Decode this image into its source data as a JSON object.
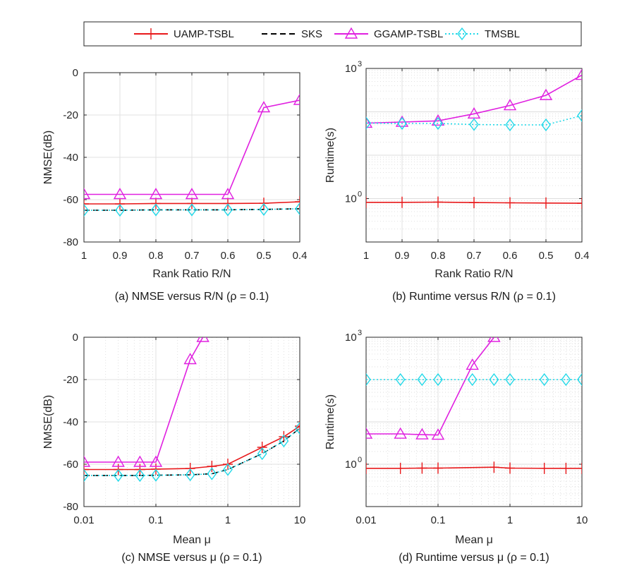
{
  "legend": {
    "entries": [
      {
        "name": "UAMP-TSBL",
        "color": "#e8191b",
        "dash": "solid",
        "marker": "plus"
      },
      {
        "name": "SKS",
        "color": "#000000",
        "dash": "dashed",
        "marker": "none"
      },
      {
        "name": "GGAMP-TSBL",
        "color": "#e020e0",
        "dash": "solid",
        "marker": "triangle"
      },
      {
        "name": "TMSBL",
        "color": "#1fd8e8",
        "dash": "dotted",
        "marker": "diamond"
      }
    ]
  },
  "chart_data": [
    {
      "type": "line",
      "caption": "(a) NMSE versus R/N (ρ = 0.1)",
      "xlabel": "Rank Ratio R/N",
      "ylabel": "NMSE(dB)",
      "xscale": "category",
      "categories": [
        "1",
        "0.9",
        "0.8",
        "0.7",
        "0.6",
        "0.5",
        "0.4"
      ],
      "yscale": "linear",
      "ylim": [
        -80,
        0
      ],
      "yticks": [
        0,
        -20,
        -40,
        -60,
        -80
      ],
      "ytick_labels": [
        "0",
        "-20",
        "-40",
        "-60",
        "-80"
      ],
      "series": [
        {
          "name": "UAMP-TSBL",
          "values": [
            -62,
            -62,
            -61.8,
            -61.8,
            -61.8,
            -61.7,
            -61
          ]
        },
        {
          "name": "SKS",
          "values": [
            -65,
            -65,
            -64.8,
            -64.8,
            -64.8,
            -64.6,
            -64.3
          ]
        },
        {
          "name": "GGAMP-TSBL",
          "values": [
            -57.5,
            -57.5,
            -57.5,
            -57.5,
            -57.5,
            -16.5,
            -13
          ]
        },
        {
          "name": "TMSBL",
          "values": [
            -65,
            -65,
            -64.8,
            -64.8,
            -64.8,
            -64.6,
            -64.3
          ]
        }
      ]
    },
    {
      "type": "line",
      "caption": "(b) Runtime versus R/N (ρ = 0.1)",
      "xlabel": "Rank Ratio R/N",
      "ylabel": "Runtime(s)",
      "xscale": "category",
      "categories": [
        "1",
        "0.9",
        "0.8",
        "0.7",
        "0.6",
        "0.5",
        "0.4"
      ],
      "yscale": "log",
      "ylim": [
        0.1,
        1000
      ],
      "yticks": [
        1000,
        1
      ],
      "ytick_labels": [
        "10^3",
        "10^0"
      ],
      "series": [
        {
          "name": "UAMP-TSBL",
          "values": [
            0.82,
            0.82,
            0.83,
            0.81,
            0.8,
            0.79,
            0.78
          ]
        },
        {
          "name": "GGAMP-TSBL",
          "values": [
            55,
            58,
            62,
            90,
            140,
            240,
            700
          ]
        },
        {
          "name": "TMSBL",
          "values": [
            55,
            54,
            54,
            51,
            50,
            50,
            82
          ]
        }
      ]
    },
    {
      "type": "line",
      "caption": "(c) NMSE versus μ (ρ = 0.1)",
      "xlabel": "Mean μ",
      "ylabel": "NMSE(dB)",
      "xscale": "log",
      "xlim": [
        0.01,
        10
      ],
      "xticks": [
        0.01,
        0.1,
        1,
        10
      ],
      "xtick_labels": [
        "0.01",
        "0.1",
        "1",
        "10"
      ],
      "yscale": "linear",
      "ylim": [
        -80,
        0
      ],
      "yticks": [
        0,
        -20,
        -40,
        -60,
        -80
      ],
      "ytick_labels": [
        "0",
        "-20",
        "-40",
        "-60",
        "-80"
      ],
      "series": [
        {
          "name": "UAMP-TSBL",
          "x": [
            0.01,
            0.03,
            0.06,
            0.1,
            0.3,
            0.6,
            1,
            3,
            6,
            10
          ],
          "values": [
            -62.5,
            -62.5,
            -62.5,
            -62.3,
            -62,
            -61,
            -60,
            -52,
            -47,
            -42
          ]
        },
        {
          "name": "SKS",
          "x": [
            0.01,
            0.03,
            0.06,
            0.1,
            0.3,
            0.6,
            1,
            3,
            6,
            10
          ],
          "values": [
            -65.3,
            -65.3,
            -65.3,
            -65.2,
            -65,
            -64.5,
            -62.5,
            -55,
            -49,
            -43
          ]
        },
        {
          "name": "GGAMP-TSBL",
          "x": [
            0.01,
            0.03,
            0.06,
            0.1,
            0.3,
            0.45
          ],
          "values": [
            -59,
            -59,
            -59,
            -59,
            -10.5,
            0
          ]
        },
        {
          "name": "TMSBL",
          "x": [
            0.01,
            0.03,
            0.06,
            0.1,
            0.3,
            0.6,
            1,
            3,
            6,
            10
          ],
          "values": [
            -65.3,
            -65.3,
            -65.3,
            -65.2,
            -65,
            -64.5,
            -62.5,
            -55,
            -49,
            -43
          ]
        }
      ]
    },
    {
      "type": "line",
      "caption": "(d) Runtime versus  μ (ρ = 0.1)",
      "xlabel": "Mean μ",
      "ylabel": "Runtime(s)",
      "xscale": "log",
      "xlim": [
        0.01,
        10
      ],
      "xticks": [
        0.01,
        0.1,
        1,
        10
      ],
      "xtick_labels": [
        "0.01",
        "0.1",
        "1",
        "10"
      ],
      "yscale": "log",
      "ylim": [
        0.1,
        1000
      ],
      "yticks": [
        1000,
        1
      ],
      "ytick_labels": [
        "10^3",
        "10^0"
      ],
      "series": [
        {
          "name": "UAMP-TSBL",
          "x": [
            0.01,
            0.03,
            0.06,
            0.1,
            0.6,
            1,
            3,
            6,
            10
          ],
          "values": [
            0.8,
            0.8,
            0.81,
            0.81,
            0.85,
            0.81,
            0.8,
            0.8,
            0.8
          ]
        },
        {
          "name": "GGAMP-TSBL",
          "x": [
            0.01,
            0.03,
            0.06,
            0.1,
            0.3,
            0.6
          ],
          "values": [
            5.2,
            5.2,
            5.0,
            4.9,
            220,
            1000
          ]
        },
        {
          "name": "TMSBL",
          "x": [
            0.01,
            0.03,
            0.06,
            0.1,
            0.3,
            0.6,
            1,
            3,
            6,
            10
          ],
          "values": [
            100,
            100,
            100,
            100,
            100,
            100,
            100,
            100,
            100,
            100
          ]
        }
      ]
    }
  ]
}
